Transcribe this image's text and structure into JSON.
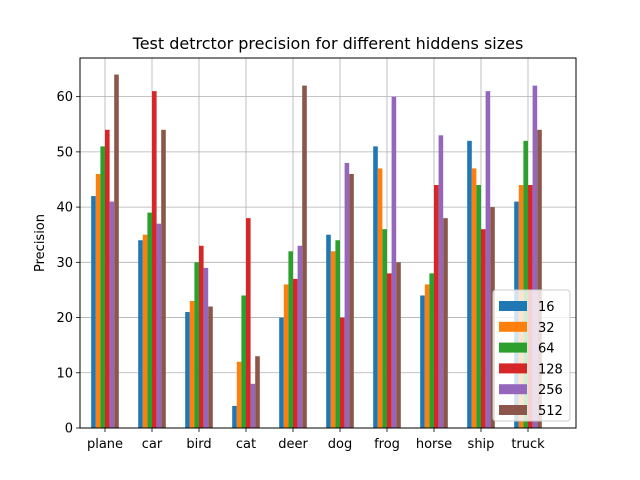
{
  "chart_data": {
    "type": "bar",
    "title": "Test detrctor precision for different hiddens sizes",
    "xlabel": "",
    "ylabel": "Precision",
    "ylim": [
      0,
      67
    ],
    "yticks": [
      0,
      10,
      20,
      30,
      40,
      50,
      60
    ],
    "grid": true,
    "legend_position": "bottom-right",
    "categories": [
      "plane",
      "car",
      "bird",
      "cat",
      "deer",
      "dog",
      "frog",
      "horse",
      "ship",
      "truck"
    ],
    "series": [
      {
        "name": "16",
        "color": "#1f77b4",
        "values": [
          42,
          34,
          21,
          4,
          20,
          35,
          51,
          24,
          52,
          41
        ]
      },
      {
        "name": "32",
        "color": "#ff7f0e",
        "values": [
          46,
          35,
          23,
          12,
          26,
          32,
          47,
          26,
          47,
          44
        ]
      },
      {
        "name": "64",
        "color": "#2ca02c",
        "values": [
          51,
          39,
          30,
          24,
          32,
          34,
          36,
          28,
          44,
          52
        ]
      },
      {
        "name": "128",
        "color": "#d62728",
        "values": [
          54,
          61,
          33,
          38,
          27,
          20,
          28,
          44,
          36,
          44
        ]
      },
      {
        "name": "256",
        "color": "#9467bd",
        "values": [
          41,
          37,
          29,
          8,
          33,
          48,
          60,
          53,
          61,
          62
        ]
      },
      {
        "name": "512",
        "color": "#8c564b",
        "values": [
          64,
          54,
          22,
          13,
          62,
          46,
          30,
          38,
          40,
          54
        ]
      }
    ]
  }
}
